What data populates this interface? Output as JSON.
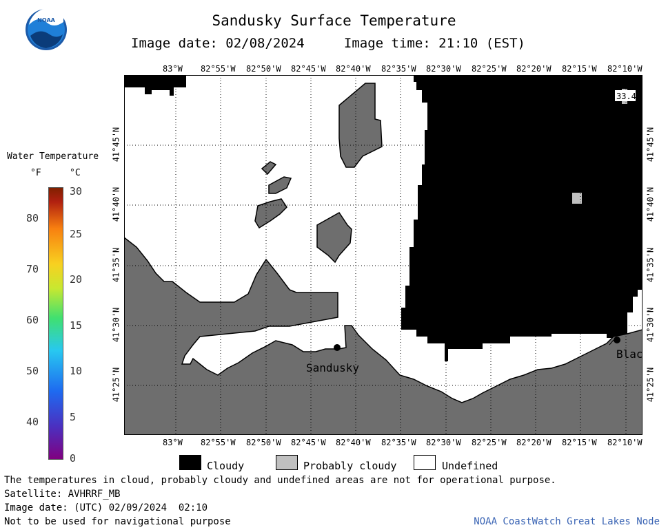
{
  "header": {
    "title": "Sandusky Surface Temperature",
    "image_date_label": "Image date: 02/08/2024",
    "image_time_label": "Image time: 21:10 (EST)"
  },
  "logo": {
    "text": "NOAA"
  },
  "map": {
    "lon_ticks_top": [
      "83°W",
      "82°55'W",
      "82°50'W",
      "82°45'W",
      "82°40'W",
      "82°35'W",
      "82°30'W",
      "82°25'W",
      "82°20'W",
      "82°15'W",
      "82°10'W"
    ],
    "lon_ticks_bottom": [
      "83°W",
      "82°55'W",
      "82°50'W",
      "82°45'W",
      "82°40'W",
      "82°35'W",
      "82°30'W",
      "82°25'W",
      "82°20'W",
      "82°15'W",
      "82°10'W"
    ],
    "lat_ticks": [
      "41°45'N",
      "41°40'N",
      "41°35'N",
      "41°30'N",
      "41°25'N"
    ],
    "places": [
      {
        "name": "Sandusky"
      },
      {
        "name": "Blac"
      }
    ],
    "buoy_value": "33.4",
    "colors": {
      "cloudy": "#000000",
      "probably_cloudy": "#c0c0c0",
      "undefined": "#ffffff",
      "land": "#6e6e6e"
    }
  },
  "legend": {
    "title": "Water Temperature",
    "f_label": "°F",
    "c_label": "°C",
    "f_ticks": [
      "80",
      "70",
      "60",
      "50",
      "40"
    ],
    "c_ticks": [
      "30",
      "25",
      "20",
      "15",
      "10",
      "5",
      "0"
    ]
  },
  "key": {
    "cloudy": "Cloudy",
    "probably_cloudy": "Probably cloudy",
    "undefined": "Undefined"
  },
  "footer": {
    "disclaimer": "The temperatures in cloud, probably cloudy and undefined areas are not for operational purpose.",
    "satellite": "Satellite: AVHRRF_MB",
    "utc_date": "Image date: (UTC) 02/09/2024  02:10",
    "nav_warning": "Not to be used for navigational purpose",
    "credit": "NOAA CoastWatch Great Lakes Node"
  }
}
